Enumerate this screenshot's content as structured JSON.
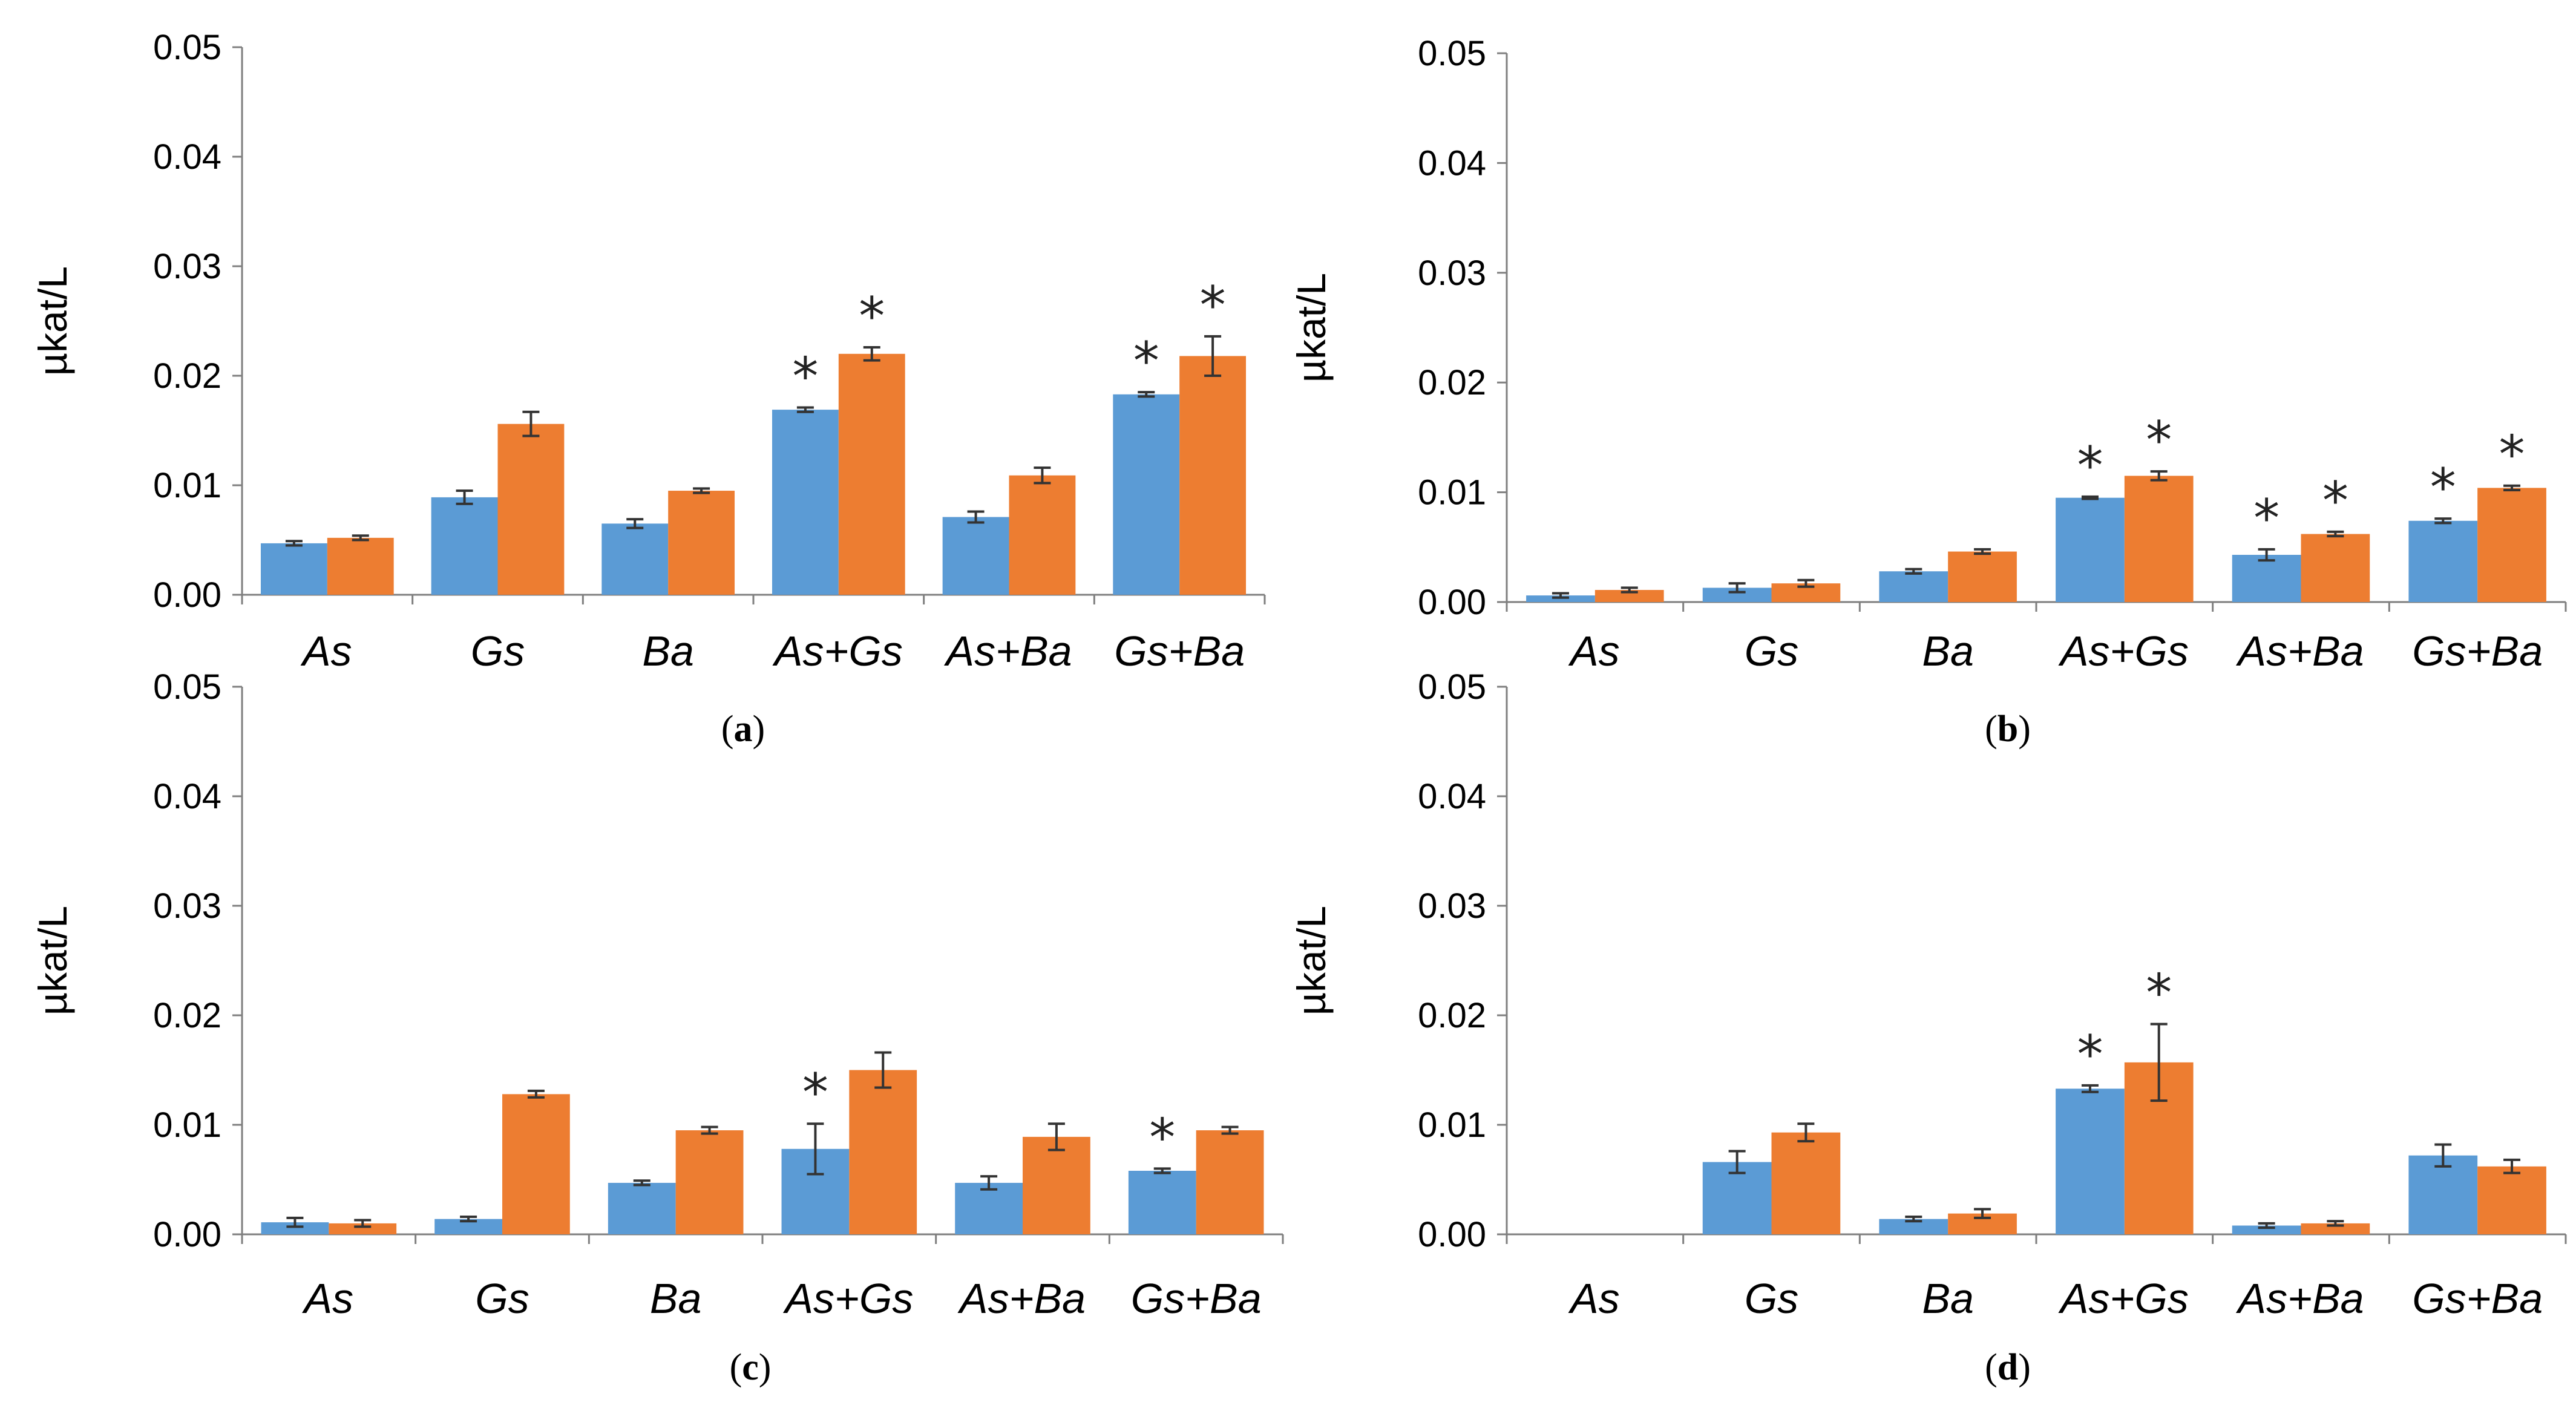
{
  "colors": {
    "series1": "#5b9bd5",
    "series2": "#ed7d31",
    "axis": "#7f7f7f",
    "errorbar": "#333333"
  },
  "chart_data": [
    {
      "type": "bar",
      "caption": "(a)",
      "ylabel": "µkat/L",
      "ylim": [
        0,
        0.05
      ],
      "yticks": [
        "0.00",
        "0.01",
        "0.02",
        "0.03",
        "0.04",
        "0.05"
      ],
      "categories": [
        "As",
        "Gs",
        "Ba",
        "As+Gs",
        "As+Ba",
        "Gs+Ba"
      ],
      "series": [
        {
          "name": "series1",
          "values": [
            0.0047,
            0.0089,
            0.0065,
            0.0169,
            0.0071,
            0.0183
          ],
          "errors": [
            0.0002,
            0.0006,
            0.0004,
            0.0002,
            0.0005,
            0.0002
          ],
          "significant": [
            false,
            false,
            false,
            true,
            false,
            true
          ]
        },
        {
          "name": "series2",
          "values": [
            0.0052,
            0.0156,
            0.0095,
            0.022,
            0.0109,
            0.0218
          ],
          "errors": [
            0.0002,
            0.0011,
            0.0002,
            0.0006,
            0.0007,
            0.0018
          ],
          "significant": [
            false,
            false,
            false,
            true,
            false,
            true
          ]
        }
      ],
      "annotation": "*"
    },
    {
      "type": "bar",
      "caption": "(b)",
      "ylabel": "µkat/L",
      "ylim": [
        0,
        0.05
      ],
      "yticks": [
        "0.00",
        "0.01",
        "0.02",
        "0.03",
        "0.04",
        "0.05"
      ],
      "categories": [
        "As",
        "Gs",
        "Ba",
        "As+Gs",
        "As+Ba",
        "Gs+Ba"
      ],
      "series": [
        {
          "name": "series1",
          "values": [
            0.0006,
            0.0013,
            0.0028,
            0.0095,
            0.0043,
            0.0074
          ],
          "errors": [
            0.0002,
            0.0004,
            0.0002,
            0.0001,
            0.0005,
            0.0002
          ],
          "significant": [
            false,
            false,
            false,
            true,
            true,
            true
          ]
        },
        {
          "name": "series2",
          "values": [
            0.0011,
            0.0017,
            0.0046,
            0.0115,
            0.0062,
            0.0104
          ],
          "errors": [
            0.0002,
            0.0003,
            0.0002,
            0.0004,
            0.0002,
            0.0002
          ],
          "significant": [
            false,
            false,
            false,
            true,
            true,
            true
          ]
        }
      ],
      "annotation": "*"
    },
    {
      "type": "bar",
      "caption": "(c)",
      "ylabel": "µkat/L",
      "ylim": [
        0,
        0.05
      ],
      "yticks": [
        "0.00",
        "0.01",
        "0.02",
        "0.03",
        "0.04",
        "0.05"
      ],
      "categories": [
        "As",
        "Gs",
        "Ba",
        "As+Gs",
        "As+Ba",
        "Gs+Ba"
      ],
      "series": [
        {
          "name": "series1",
          "values": [
            0.0011,
            0.0014,
            0.0047,
            0.0078,
            0.0047,
            0.0058
          ],
          "errors": [
            0.0004,
            0.0002,
            0.0002,
            0.0023,
            0.0006,
            0.0002
          ],
          "significant": [
            false,
            false,
            false,
            true,
            false,
            true
          ]
        },
        {
          "name": "series2",
          "values": [
            0.001,
            0.0128,
            0.0095,
            0.015,
            0.0089,
            0.0095
          ],
          "errors": [
            0.0003,
            0.0003,
            0.0003,
            0.0016,
            0.0012,
            0.0003
          ],
          "significant": [
            false,
            false,
            false,
            false,
            false,
            false
          ]
        }
      ],
      "annotation": "*"
    },
    {
      "type": "bar",
      "caption": "(d)",
      "ylabel": "µkat/L",
      "ylim": [
        0,
        0.05
      ],
      "yticks": [
        "0.00",
        "0.01",
        "0.02",
        "0.03",
        "0.04",
        "0.05"
      ],
      "categories": [
        "As",
        "Gs",
        "Ba",
        "As+Gs",
        "As+Ba",
        "Gs+Ba"
      ],
      "series": [
        {
          "name": "series1",
          "values": [
            0,
            0.0066,
            0.0014,
            0.0133,
            0.0008,
            0.0072
          ],
          "errors": [
            0,
            0.001,
            0.0002,
            0.0003,
            0.0002,
            0.001
          ],
          "significant": [
            false,
            false,
            false,
            true,
            false,
            false
          ]
        },
        {
          "name": "series2",
          "values": [
            0,
            0.0093,
            0.0019,
            0.0157,
            0.001,
            0.0062
          ],
          "errors": [
            0,
            0.0008,
            0.0004,
            0.0035,
            0.0002,
            0.0006
          ],
          "significant": [
            false,
            false,
            false,
            true,
            false,
            false
          ]
        }
      ],
      "annotation": "*"
    }
  ]
}
